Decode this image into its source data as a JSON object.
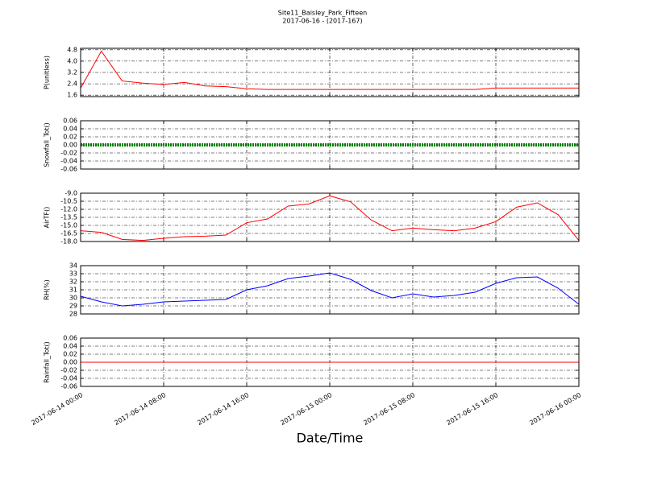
{
  "title": "Site11_Baisley_Park_Fifteen",
  "subtitle": "2017-06-16 - (2017-167)",
  "xlabel": "Date/Time",
  "x": [
    "2017-06-14 00:00",
    "2017-06-14 02:00",
    "2017-06-14 04:00",
    "2017-06-14 06:00",
    "2017-06-14 08:00",
    "2017-06-14 10:00",
    "2017-06-14 12:00",
    "2017-06-14 14:00",
    "2017-06-14 16:00",
    "2017-06-14 18:00",
    "2017-06-14 20:00",
    "2017-06-14 22:00",
    "2017-06-15 00:00",
    "2017-06-15 02:00",
    "2017-06-15 04:00",
    "2017-06-15 06:00",
    "2017-06-15 08:00",
    "2017-06-15 10:00",
    "2017-06-15 12:00",
    "2017-06-15 14:00",
    "2017-06-15 16:00",
    "2017-06-15 18:00",
    "2017-06-15 20:00",
    "2017-06-15 22:00",
    "2017-06-16 00:00"
  ],
  "xlim": [
    "2017-06-14 00:00",
    "2017-06-16 00:00"
  ],
  "xticks": [
    "2017-06-14 00:00",
    "2017-06-14 08:00",
    "2017-06-14 16:00",
    "2017-06-15 00:00",
    "2017-06-15 08:00",
    "2017-06-15 16:00",
    "2017-06-16 00:00"
  ],
  "grid": true,
  "chart_data": [
    {
      "type": "line",
      "ylabel": "P(unitless)",
      "ylim": [
        1.5,
        4.9
      ],
      "yticks": [
        1.6,
        2.4,
        3.2,
        {
          "value": 4,
          "label": "4.0"
        },
        4.8
      ],
      "series": [
        {
          "name": "P",
          "color": "#ff0000",
          "values": [
            2.1,
            4.7,
            2.6,
            2.45,
            2.35,
            2.5,
            2.25,
            2.2,
            2.05,
            2.0,
            2.0,
            2.0,
            2.0,
            2.0,
            2.0,
            2.0,
            2.0,
            2.0,
            2.0,
            2.0,
            2.1,
            2.1,
            2.1,
            2.1,
            2.1
          ]
        }
      ]
    },
    {
      "type": "line",
      "ylabel": "Snowfall_Tot()",
      "ylim": [
        -0.06,
        0.06
      ],
      "yticks": [
        -0.06,
        -0.04,
        -0.02,
        {
          "value": 0,
          "label": "0.00"
        },
        0.02,
        0.04,
        0.06
      ],
      "series": [
        {
          "name": "Snowfall_Tot",
          "color": "#007f00",
          "values": [
            0,
            0,
            0,
            0,
            0,
            0,
            0,
            0,
            0,
            0,
            0,
            0,
            0,
            0,
            0,
            0,
            0,
            0,
            0,
            0,
            0,
            0,
            0,
            0,
            0
          ]
        }
      ]
    },
    {
      "type": "line",
      "ylabel": "AirTF()",
      "ylim": [
        -18,
        -9
      ],
      "yticks": [
        {
          "value": -18,
          "label": "-18.0"
        },
        -16.5,
        {
          "value": -15,
          "label": "-15.0"
        },
        -13.5,
        {
          "value": -12,
          "label": "-12.0"
        },
        -10.5,
        {
          "value": -9,
          "label": "-9.0"
        }
      ],
      "series": [
        {
          "name": "AirTF",
          "color": "#ff0000",
          "values": [
            -16,
            -16.3,
            -17.6,
            -17.8,
            -17.4,
            -17.1,
            -17.0,
            -16.8,
            -14.5,
            -13.8,
            -11.4,
            -11.0,
            -9.5,
            -10.6,
            -14.0,
            -16.0,
            -15.5,
            -15.8,
            -16.0,
            -15.5,
            -14.3,
            -11.6,
            -10.8,
            -13.0,
            -17.8
          ]
        }
      ]
    },
    {
      "type": "line",
      "ylabel": "RH(%)",
      "ylim": [
        28,
        34
      ],
      "yticks": [
        28,
        29,
        30,
        31,
        32,
        33,
        34
      ],
      "series": [
        {
          "name": "RH",
          "color": "#0000ff",
          "values": [
            30.2,
            29.5,
            29.0,
            29.2,
            29.5,
            29.6,
            29.7,
            29.8,
            31.0,
            31.5,
            32.4,
            32.7,
            33.1,
            32.3,
            30.9,
            30.0,
            30.5,
            30.1,
            30.3,
            30.7,
            31.8,
            32.5,
            32.6,
            31.2,
            29.2
          ]
        }
      ]
    },
    {
      "type": "line",
      "ylabel": "Rainfall_Tot()",
      "ylim": [
        -0.06,
        0.06
      ],
      "yticks": [
        -0.06,
        -0.04,
        -0.02,
        {
          "value": 0,
          "label": "0.00"
        },
        0.02,
        0.04,
        0.06
      ],
      "series": [
        {
          "name": "Rainfall_Tot",
          "color": "#ff0000",
          "values": [
            0,
            0,
            0,
            0,
            0,
            0,
            0,
            0,
            0,
            0,
            0,
            0,
            0,
            0,
            0,
            0,
            0,
            0,
            0,
            0,
            0,
            0,
            0,
            0,
            0
          ]
        }
      ]
    }
  ]
}
